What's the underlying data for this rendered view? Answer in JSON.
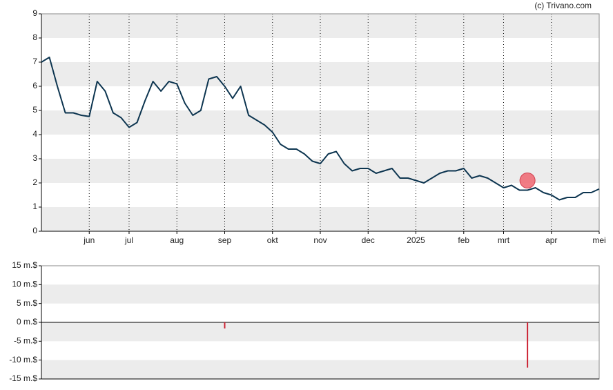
{
  "chart_data": [
    {
      "type": "line",
      "annotation": "(c) Trivano.com",
      "categories": [
        null,
        null,
        null,
        null,
        null,
        null,
        "jun",
        null,
        null,
        null,
        null,
        "jul",
        null,
        null,
        null,
        null,
        null,
        "aug",
        null,
        null,
        null,
        null,
        null,
        "sep",
        null,
        null,
        null,
        null,
        null,
        "okt",
        null,
        null,
        null,
        null,
        null,
        "nov",
        null,
        null,
        null,
        null,
        null,
        "dec",
        null,
        null,
        null,
        null,
        null,
        "2025",
        null,
        null,
        null,
        null,
        null,
        "feb",
        null,
        null,
        null,
        null,
        "mrt",
        null,
        null,
        null,
        null,
        null,
        "apr",
        null,
        null,
        null,
        null,
        null,
        "mei"
      ],
      "series": [
        {
          "color": "#0d3550",
          "values": [
            7.0,
            7.2,
            6.0,
            4.9,
            4.9,
            4.8,
            4.75,
            6.2,
            5.8,
            4.9,
            4.7,
            4.3,
            4.5,
            5.4,
            6.2,
            5.8,
            6.2,
            6.1,
            5.3,
            4.8,
            5.0,
            6.3,
            6.4,
            6.0,
            5.5,
            6.0,
            4.8,
            4.6,
            4.4,
            4.1,
            3.6,
            3.4,
            3.4,
            3.2,
            2.9,
            2.8,
            3.2,
            3.3,
            2.8,
            2.5,
            2.6,
            2.6,
            2.4,
            2.5,
            2.6,
            2.2,
            2.2,
            2.1,
            2.0,
            2.2,
            2.4,
            2.5,
            2.5,
            2.6,
            2.2,
            2.3,
            2.2,
            2.0,
            1.8,
            1.9,
            1.7,
            1.7,
            1.8,
            1.6,
            1.5,
            1.3,
            1.4,
            1.4,
            1.6,
            1.6,
            1.75
          ]
        },
        {
          "type": "scatter",
          "color": "#f06e78",
          "values": [
            null,
            null,
            null,
            null,
            null,
            null,
            null,
            null,
            null,
            null,
            null,
            null,
            null,
            null,
            null,
            null,
            null,
            null,
            null,
            null,
            null,
            null,
            null,
            null,
            null,
            null,
            null,
            null,
            null,
            null,
            null,
            null,
            null,
            null,
            null,
            null,
            null,
            null,
            null,
            null,
            null,
            null,
            null,
            null,
            null,
            null,
            null,
            null,
            null,
            null,
            null,
            null,
            null,
            null,
            null,
            null,
            null,
            null,
            null,
            null,
            null,
            2.1,
            null,
            null,
            null,
            null,
            null,
            null,
            null,
            null,
            null
          ]
        }
      ],
      "ylim": [
        0,
        9
      ],
      "yticks": [
        0,
        1,
        2,
        3,
        4,
        5,
        6,
        7,
        8,
        9
      ],
      "grid": true
    },
    {
      "type": "bar",
      "color": "#cc2233",
      "values": [
        null,
        null,
        null,
        null,
        null,
        null,
        null,
        null,
        null,
        null,
        null,
        null,
        null,
        null,
        null,
        null,
        null,
        null,
        null,
        null,
        null,
        null,
        null,
        -1.6,
        null,
        null,
        null,
        null,
        null,
        null,
        null,
        null,
        null,
        null,
        null,
        null,
        null,
        null,
        null,
        null,
        null,
        null,
        null,
        null,
        null,
        null,
        null,
        null,
        null,
        null,
        null,
        null,
        null,
        null,
        null,
        null,
        null,
        null,
        null,
        null,
        null,
        -12,
        null,
        null,
        null,
        null,
        null,
        null,
        null,
        null,
        null
      ],
      "ylim": [
        -15,
        15
      ],
      "yticks": [
        {
          "value": -15,
          "label": "-15 m.$"
        },
        {
          "value": -10,
          "label": "-10 m.$"
        },
        {
          "value": -5,
          "label": "-5 m.$"
        },
        {
          "value": 0,
          "label": "0 m.$"
        },
        {
          "value": 5,
          "label": "5 m.$"
        },
        {
          "value": 10,
          "label": "10 m.$"
        },
        {
          "value": 15,
          "label": "15 m.$"
        }
      ],
      "grid": true
    }
  ]
}
